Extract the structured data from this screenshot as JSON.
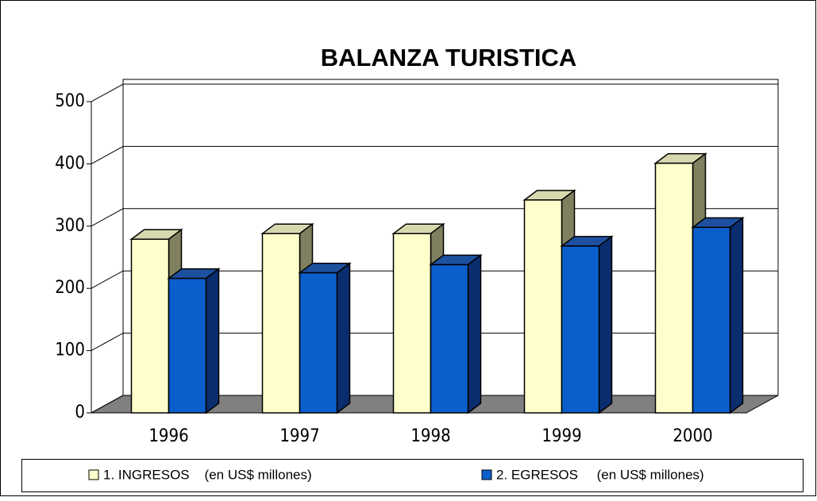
{
  "chart_data": {
    "type": "bar3d",
    "title": "BALANZA TURISTICA",
    "categories": [
      "1996",
      "1997",
      "1998",
      "1999",
      "2000"
    ],
    "series": [
      {
        "name": "1. INGRESOS    (en US$ millones)",
        "color": "#ffffcc",
        "values": [
          279,
          288,
          288,
          342,
          401
        ]
      },
      {
        "name": "2. EGRESOS     (en US$ millones)",
        "color": "#0a5fcc",
        "values": [
          216,
          225,
          238,
          268,
          298
        ]
      }
    ],
    "ylim": [
      0,
      500
    ],
    "yticks": [
      0,
      100,
      200,
      300,
      400,
      500
    ],
    "grid": true,
    "legend": "bottom"
  }
}
